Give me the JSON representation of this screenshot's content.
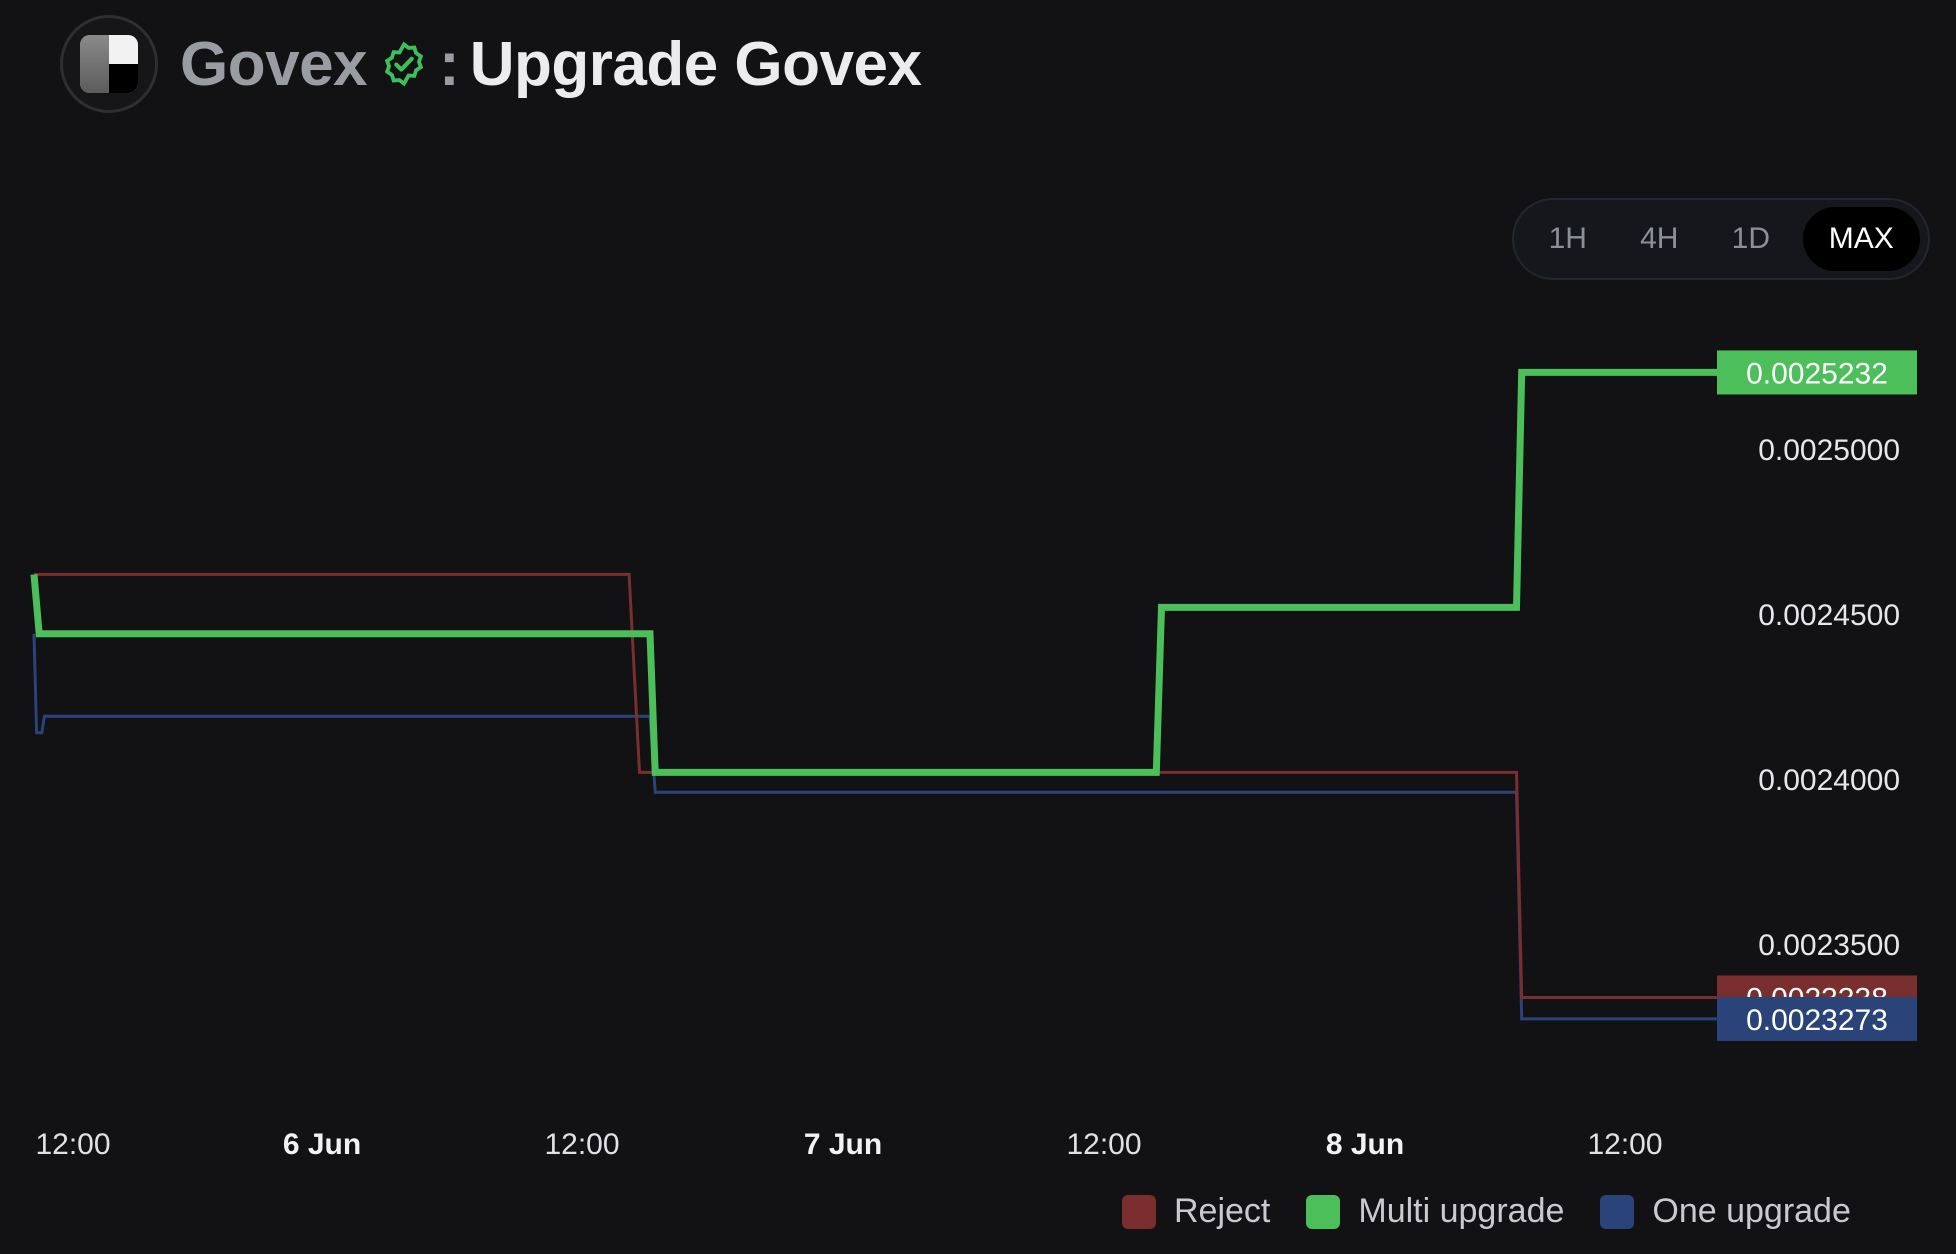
{
  "header": {
    "dao_name": "Govex",
    "separator": ":",
    "proposal_title": "Upgrade Govex",
    "logo_icon": "govex-logo-icon",
    "verified_icon": "verified-badge-icon",
    "verified_color": "#3fbf5a"
  },
  "timeframes": {
    "options": [
      "1H",
      "4H",
      "1D",
      "MAX"
    ],
    "selected": "MAX"
  },
  "chart_data": {
    "type": "line",
    "step": true,
    "x_ticks": [
      {
        "label": "12:00",
        "bold": false
      },
      {
        "label": "6 Jun",
        "bold": true
      },
      {
        "label": "12:00",
        "bold": false
      },
      {
        "label": "7 Jun",
        "bold": true
      },
      {
        "label": "12:00",
        "bold": false
      },
      {
        "label": "8 Jun",
        "bold": true
      },
      {
        "label": "12:00",
        "bold": false
      }
    ],
    "y_ticks": [
      "0.0025000",
      "0.0024500",
      "0.0024000",
      "0.0023500"
    ],
    "y_tick_values": [
      0.0025,
      0.00245,
      0.0024,
      0.00235
    ],
    "ylim": [
      0.0023,
      0.00256
    ],
    "series": [
      {
        "name": "Reject",
        "color": "#7a2e2e",
        "points": [
          [
            0.0,
            0.002462
          ],
          [
            11.4,
            0.002462
          ],
          [
            11.6,
            0.002402
          ],
          [
            28.4,
            0.002402
          ],
          [
            28.5,
            0.0023338
          ],
          [
            32.8,
            0.0023338
          ]
        ],
        "last_value": "0.0023338"
      },
      {
        "name": "Multi upgrade",
        "color": "#4cbf5a",
        "points": [
          [
            0.0,
            0.002462
          ],
          [
            0.1,
            0.002444
          ],
          [
            11.8,
            0.002444
          ],
          [
            11.9,
            0.002402
          ],
          [
            21.5,
            0.002402
          ],
          [
            21.6,
            0.002452
          ],
          [
            28.4,
            0.002452
          ],
          [
            28.5,
            0.0025232
          ],
          [
            32.8,
            0.0025232
          ]
        ],
        "last_value": "0.0025232"
      },
      {
        "name": "One upgrade",
        "color": "#2a4479",
        "points": [
          [
            0.0,
            0.002444
          ],
          [
            0.05,
            0.002414
          ],
          [
            0.15,
            0.002414
          ],
          [
            0.2,
            0.002419
          ],
          [
            11.8,
            0.002419
          ],
          [
            11.9,
            0.002396
          ],
          [
            28.4,
            0.002396
          ],
          [
            28.5,
            0.0023273
          ],
          [
            32.8,
            0.0023273
          ]
        ],
        "last_value": "0.0023273"
      }
    ]
  },
  "legend": [
    {
      "label": "Reject",
      "color": "#7a2e2e"
    },
    {
      "label": "Multi upgrade",
      "color": "#4cbf5a"
    },
    {
      "label": "One upgrade",
      "color": "#2a4479"
    }
  ]
}
